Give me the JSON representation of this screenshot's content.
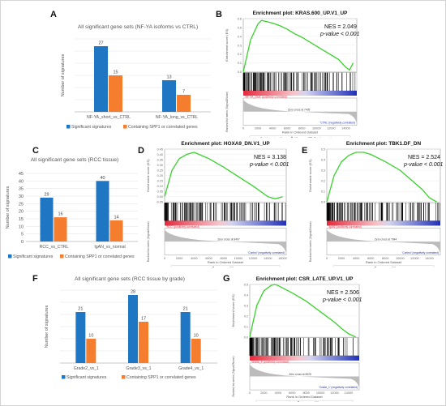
{
  "panels": {
    "A": {
      "letter": "A",
      "chart_title": "All significant gene sets (NF-YA isoforms vs CTRL)",
      "ylabel": "Number of signatures",
      "categories": [
        "NF-YA_short_vs_CTRL",
        "NF-YA_long_vs_CTRL"
      ],
      "ylim": [
        0,
        30
      ],
      "ticks": [
        "0",
        "5",
        "10",
        "15",
        "20",
        "25",
        "30"
      ],
      "legend": [
        "Significant signatures",
        "Containing SPP1 or correlated genes"
      ]
    },
    "B": {
      "letter": "B",
      "plot_title": "Enrichment plot: KRAS.600_UP.V1_UP",
      "nes": "NES = 2.049",
      "pval": "p-value < 0.001",
      "y_axis_top": "Enrichment score (ES)",
      "y_axis_bottom": "Ranked list metric (Signal2Noise)",
      "x_axis": "Rank in Ordered Dataset",
      "ticks_x": [
        "0",
        "2000",
        "4000",
        "6000",
        "8000",
        "10000",
        "12000",
        "14000"
      ],
      "ticks_y": [
        "0.6",
        "0.5",
        "0.4",
        "0.3",
        "0.2",
        "0.1",
        "0.0"
      ],
      "pos_label": "'NF-YA_short' (positively correlated)",
      "neg_label": "'CTRL' (negatively correlated)",
      "zero_cross": "Zero cross at 7405",
      "legend": [
        "Enrichment profile",
        "Hits",
        "Ranking metric scores"
      ]
    },
    "C": {
      "letter": "C",
      "chart_title": "All significant gene sets (RCC tissue)",
      "ylabel": "Number of signatures",
      "categories": [
        "RCC_vs_CTRL",
        "IgAN_vs_normal"
      ],
      "ylim": [
        0,
        45
      ],
      "ticks": [
        "0",
        "5",
        "10",
        "15",
        "20",
        "25",
        "30",
        "35",
        "40",
        "45"
      ],
      "legend": [
        "Significant signatures",
        "Containing SPP1 or correlated genes"
      ]
    },
    "D": {
      "letter": "D",
      "plot_title": "Enrichment plot: HOXA9_DN.V1_UP",
      "nes": "NES = 3.138",
      "pval": "p-value < 0.001",
      "y_axis_top": "Enrichment score (ES)",
      "y_axis_bottom": "Ranked list metric (Signal2Noise)",
      "x_axis": "Rank in Ordered Dataset",
      "ticks_x": [
        "0",
        "2000",
        "4000",
        "6000",
        "8000",
        "10000",
        "12000",
        "14000",
        "16000"
      ],
      "ticks_y": [
        "0.45",
        "0.40",
        "0.35",
        "0.30",
        "0.25",
        "0.20",
        "0.15",
        "0.10",
        "0.05",
        "0.00",
        "-0.05"
      ],
      "pos_label": "'RCC' (positively correlated)",
      "neg_label": "'Control' (negatively correlated)",
      "zero_cross": "Zero cross at 8497",
      "legend": [
        "Enrichment profile",
        "Hits",
        "Ranking metric scores"
      ]
    },
    "E": {
      "letter": "E",
      "plot_title": "Enrichment plot: TBK1.DF_DN",
      "nes": "NES = 2.524",
      "pval": "p-value < 0.001",
      "y_axis_top": "Enrichment score (ES)",
      "y_axis_bottom": "Ranked list metric (Signal2Noise)",
      "x_axis": "Rank in Ordered Dataset",
      "ticks_x": [
        "0",
        "2000",
        "4000",
        "6000",
        "8000",
        "10000",
        "12000",
        "14000"
      ],
      "ticks_y": [
        "0.5",
        "0.4",
        "0.3",
        "0.2",
        "0.1",
        "0.0"
      ],
      "pos_label": "'IgAN' (positively correlated)",
      "neg_label": "'Control' (negatively correlated)",
      "zero_cross": "Zero cross at 7844",
      "legend": [
        "Enrichment profile",
        "Hits",
        "Ranking metric scores"
      ]
    },
    "F": {
      "letter": "F",
      "chart_title": "All significant gene sets (RCC tissue by grade)",
      "ylabel": "Number of signatures",
      "categories": [
        "Grade2_vs_1",
        "Grade3_vs_1",
        "Grade4_vs_1"
      ],
      "ylim": [
        0,
        30
      ],
      "ticks": [
        "0",
        "5",
        "10",
        "15",
        "20",
        "25",
        "30"
      ],
      "legend": [
        "Significant signatures",
        "Containing SPP1 or correlated genes"
      ]
    },
    "G": {
      "letter": "G",
      "plot_title": "Enrichment plot: CSR_LATE_UP.V1_UP",
      "nes": "NES = 2.506",
      "pval": "p-value < 0.001",
      "y_axis_top": "Enrichment score (ES)",
      "y_axis_bottom": "Ranked list metric (Signal2Noise)",
      "x_axis": "Rank in Ordered Dataset",
      "ticks_x": [
        "0",
        "2000",
        "4000",
        "6000",
        "8000",
        "10000",
        "12000",
        "14000"
      ],
      "ticks_y": [
        "0.5",
        "0.4",
        "0.3",
        "0.2",
        "0.1",
        "0.0"
      ],
      "pos_label": "'Grade_4' (positively correlated)",
      "neg_label": "'Grade_1' (negatively correlated)",
      "zero_cross": "Zero cross at 6925",
      "legend": [
        "Enrichment profile",
        "Hits",
        "Ranking metric scores"
      ]
    }
  },
  "colors": {
    "significant": "#1f77c4",
    "spp1": "#f47d2e",
    "enrichment": "#39d12b",
    "axis": "#888888"
  },
  "chart_data": [
    {
      "panel": "A",
      "type": "bar",
      "categories": [
        "NF-YA_short_vs_CTRL",
        "NF-YA_long_vs_CTRL"
      ],
      "series": [
        {
          "name": "Significant signatures",
          "values": [
            27,
            13
          ]
        },
        {
          "name": "Containing SPP1 or correlated genes",
          "values": [
            15,
            7
          ]
        }
      ],
      "ylabel": "Number of signatures",
      "ylim": [
        0,
        30
      ],
      "legend": "bottom"
    },
    {
      "panel": "C",
      "type": "bar",
      "categories": [
        "RCC_vs_CTRL",
        "IgAN_vs_normal"
      ],
      "series": [
        {
          "name": "Significant signatures",
          "values": [
            29,
            40
          ]
        },
        {
          "name": "Containing SPP1 or correlated genes",
          "values": [
            16,
            14
          ]
        }
      ],
      "ylabel": "Number of signatures",
      "ylim": [
        0,
        45
      ],
      "legend": "bottom"
    },
    {
      "panel": "F",
      "type": "bar",
      "categories": [
        "Grade2_vs_1",
        "Grade3_vs_1",
        "Grade4_vs_1"
      ],
      "series": [
        {
          "name": "Significant signatures",
          "values": [
            21,
            28,
            21
          ]
        },
        {
          "name": "Containing SPP1 or correlated genes",
          "values": [
            10,
            17,
            10
          ]
        }
      ],
      "ylabel": "Number of signatures",
      "ylim": [
        0,
        30
      ],
      "legend": "bottom"
    },
    {
      "panel": "B",
      "type": "line",
      "x": [
        0,
        1000,
        2000,
        2500,
        3000,
        4000,
        5000,
        6000,
        7000,
        8000,
        9000,
        10000,
        11000,
        12000,
        13000,
        14000,
        14500,
        15000
      ],
      "y": [
        0.0,
        0.36,
        0.54,
        0.58,
        0.57,
        0.55,
        0.52,
        0.48,
        0.43,
        0.39,
        0.34,
        0.29,
        0.24,
        0.19,
        0.14,
        0.05,
        0.02,
        0.1
      ],
      "xlim": [
        0,
        15500
      ],
      "ylim": [
        0.0,
        0.6
      ],
      "xlabel": "Rank in Ordered Dataset",
      "ylabel": "Enrichment score (ES)"
    },
    {
      "panel": "D",
      "type": "line",
      "x": [
        0,
        1000,
        2000,
        3000,
        4000,
        6000,
        8000,
        10000,
        12000,
        14000,
        15000,
        16000
      ],
      "y": [
        0.0,
        0.25,
        0.36,
        0.4,
        0.42,
        0.36,
        0.28,
        0.19,
        0.1,
        0.0,
        -0.02,
        0.0
      ],
      "xlim": [
        0,
        16500
      ],
      "ylim": [
        -0.05,
        0.45
      ],
      "xlabel": "Rank in Ordered Dataset",
      "ylabel": "Enrichment score (ES)"
    },
    {
      "panel": "E",
      "type": "line",
      "x": [
        0,
        1000,
        2000,
        3000,
        4000,
        5000,
        6000,
        8000,
        10000,
        12000,
        13000,
        14000,
        15000
      ],
      "y": [
        0.0,
        0.25,
        0.38,
        0.44,
        0.47,
        0.47,
        0.45,
        0.38,
        0.3,
        0.18,
        0.12,
        0.04,
        0.0
      ],
      "xlim": [
        0,
        15500
      ],
      "ylim": [
        0.0,
        0.5
      ],
      "xlabel": "Rank in Ordered Dataset",
      "ylabel": "Enrichment score (ES)"
    },
    {
      "panel": "G",
      "type": "line",
      "x": [
        0,
        1000,
        2000,
        3000,
        3500,
        4000,
        6000,
        8000,
        10000,
        12000,
        13000,
        14000,
        15000
      ],
      "y": [
        0.0,
        0.3,
        0.44,
        0.49,
        0.5,
        0.49,
        0.42,
        0.34,
        0.24,
        0.14,
        0.08,
        0.03,
        0.0
      ],
      "xlim": [
        0,
        15500
      ],
      "ylim": [
        0.0,
        0.5
      ],
      "xlabel": "Rank in Ordered Dataset",
      "ylabel": "Enrichment score (ES)"
    }
  ]
}
